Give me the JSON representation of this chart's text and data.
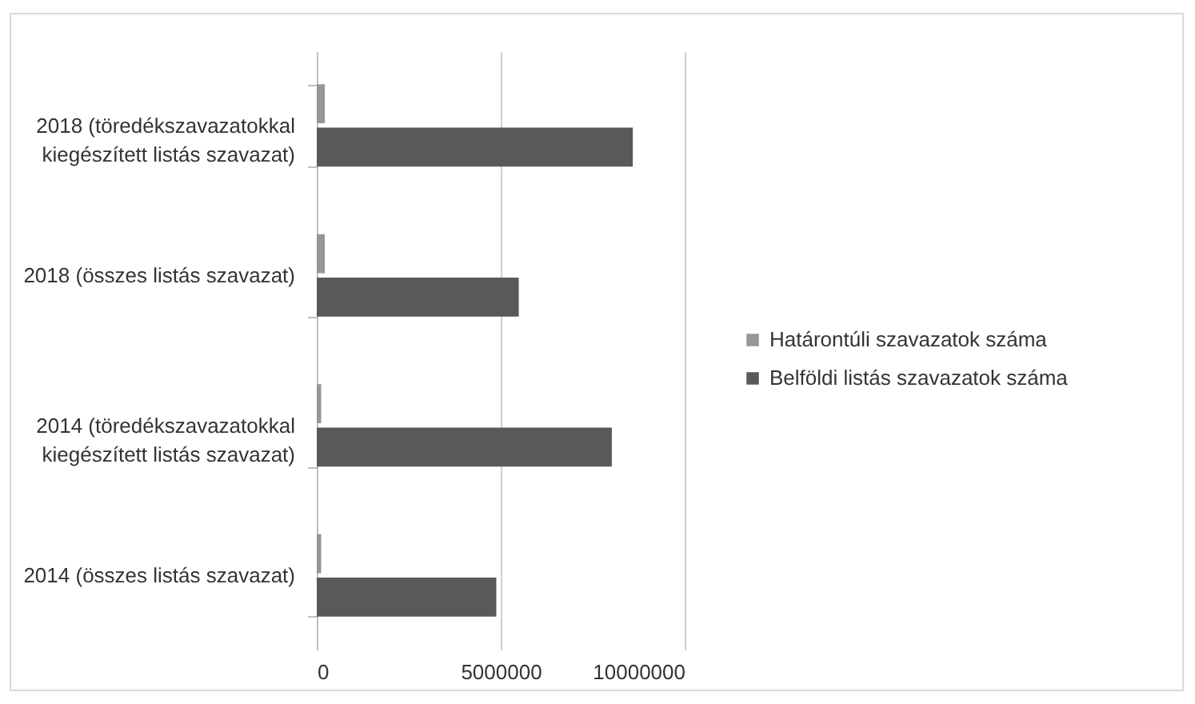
{
  "chart_data": {
    "type": "bar",
    "orientation": "horizontal",
    "categories": [
      "2018 (töredékszavazatokkal kiegészített listás szavazat)",
      "2018 (összes listás szavazat)",
      "2014 (töredékszavazatokkal kiegészített listás szavazat)",
      "2014 (összes listás szavazat)"
    ],
    "series": [
      {
        "name": "Határontúli szavazatok száma",
        "color": "#969696",
        "values": [
          220000,
          220000,
          120000,
          120000
        ]
      },
      {
        "name": "Belföldi listás szavazatok száma",
        "color": "#595959",
        "values": [
          8590000,
          5490000,
          8020000,
          4880000
        ]
      }
    ],
    "xlim": [
      0,
      10000000
    ],
    "xticks": [
      0,
      5000000,
      10000000
    ],
    "grid": "x",
    "legend": "right"
  }
}
